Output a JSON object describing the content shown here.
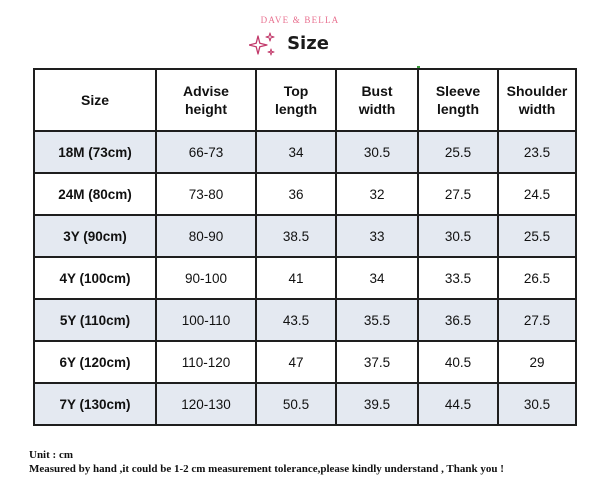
{
  "header": {
    "brand": "DAVE & BELLA",
    "title": "Size",
    "brand_color": "#e8708f",
    "decoration_icon": "sparkle-icon"
  },
  "table": {
    "headers": [
      [
        "Size"
      ],
      [
        "Advise",
        "height"
      ],
      [
        "Top",
        "length"
      ],
      [
        "Bust",
        "width"
      ],
      [
        "Sleeve",
        "length"
      ],
      [
        "Shoulder",
        "width"
      ]
    ],
    "rows": [
      [
        "18M (73cm)",
        "66-73",
        "34",
        "30.5",
        "25.5",
        "23.5"
      ],
      [
        "24M (80cm)",
        "73-80",
        "36",
        "32",
        "27.5",
        "24.5"
      ],
      [
        "3Y (90cm)",
        "80-90",
        "38.5",
        "33",
        "30.5",
        "25.5"
      ],
      [
        "4Y (100cm)",
        "90-100",
        "41",
        "34",
        "33.5",
        "26.5"
      ],
      [
        "5Y (110cm)",
        "100-110",
        "43.5",
        "35.5",
        "36.5",
        "27.5"
      ],
      [
        "6Y (120cm)",
        "110-120",
        "47",
        "37.5",
        "40.5",
        "29"
      ],
      [
        "7Y (130cm)",
        "120-130",
        "50.5",
        "39.5",
        "44.5",
        "30.5"
      ]
    ],
    "shaded_row_color": "#e4e9f1"
  },
  "notes": {
    "unit": "Unit : cm",
    "disclaimer": "Measured by hand ,it could be 1-2 cm measurement tolerance,please kindly understand , Thank you !"
  }
}
